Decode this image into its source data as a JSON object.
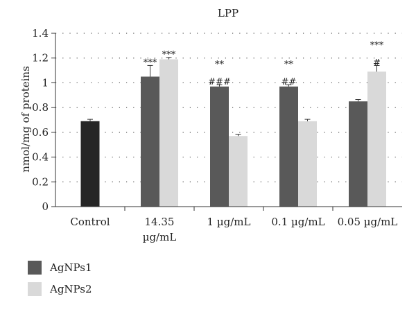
{
  "chart_data": {
    "type": "bar",
    "title": "LPP",
    "ylabel": "nmol/mg of proteins",
    "xlabel": "",
    "ylim": [
      0,
      1.4
    ],
    "yticks": [
      "0",
      "0.2",
      "0.4",
      "0.6",
      "0.8",
      "1",
      "1.2",
      "1.4"
    ],
    "grid": "horizontal dotted",
    "categories": [
      {
        "lines": [
          "Control"
        ]
      },
      {
        "lines": [
          "14.35",
          "µg/mL"
        ]
      },
      {
        "lines": [
          "1 µg/mL"
        ]
      },
      {
        "lines": [
          "0.1 µg/mL"
        ]
      },
      {
        "lines": [
          "0.05 µg/mL"
        ]
      }
    ],
    "control": {
      "value": 0.69,
      "error": 0.015,
      "color": "#262626"
    },
    "series": [
      {
        "name": "AgNPs1",
        "color": "#595959",
        "values": [
          null,
          1.05,
          0.97,
          0.97,
          0.85
        ],
        "errors": [
          null,
          0.09,
          0.015,
          0.015,
          0.015
        ],
        "annotations": [
          [],
          [
            "***"
          ],
          [
            "**",
            "###"
          ],
          [
            "**",
            "##"
          ],
          []
        ]
      },
      {
        "name": "AgNPs2",
        "color": "#d9d9d9",
        "values": [
          null,
          1.19,
          0.57,
          0.69,
          1.09
        ],
        "errors": [
          null,
          0.015,
          0.015,
          0.015,
          0.05
        ],
        "annotations": [
          [],
          [
            "***"
          ],
          [],
          [],
          [
            "***",
            "#"
          ]
        ]
      }
    ],
    "legend_position": "bottom-left"
  }
}
